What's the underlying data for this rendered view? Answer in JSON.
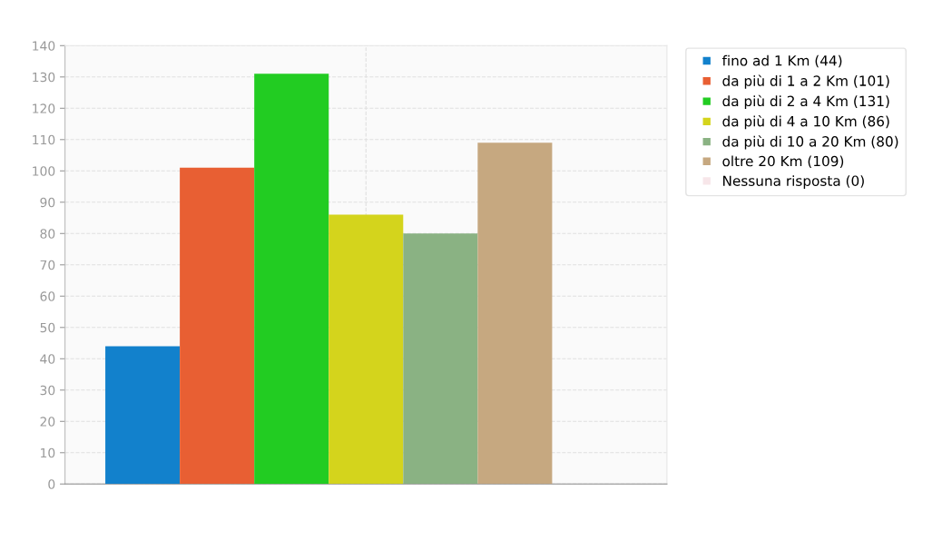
{
  "chart_data": {
    "type": "bar",
    "categories": [
      null
    ],
    "series": [
      {
        "name": "fino ad 1 Km (44)",
        "color": "#1281cc",
        "values": [
          44
        ]
      },
      {
        "name": "da più di 1 a 2 Km (101)",
        "color": "#e85f33",
        "values": [
          101
        ]
      },
      {
        "name": "da più di 2 a 4 Km (131)",
        "color": "#22cc22",
        "values": [
          131
        ]
      },
      {
        "name": "da più di 4 a 10 Km (86)",
        "color": "#d4d41c",
        "values": [
          86
        ]
      },
      {
        "name": "da più di 10 a 20 Km (80)",
        "color": "#8ab283",
        "values": [
          80
        ]
      },
      {
        "name": "oltre 20 Km (109)",
        "color": "#c6a880",
        "values": [
          109
        ]
      },
      {
        "name": "Nessuna risposta (0)",
        "color": "#f7e6e9",
        "values": [
          0
        ]
      }
    ],
    "ylim": [
      0,
      140
    ],
    "yticks": [
      0,
      10,
      20,
      30,
      40,
      50,
      60,
      70,
      80,
      90,
      100,
      110,
      120,
      130,
      140
    ],
    "grid": true,
    "legend": "top right"
  }
}
